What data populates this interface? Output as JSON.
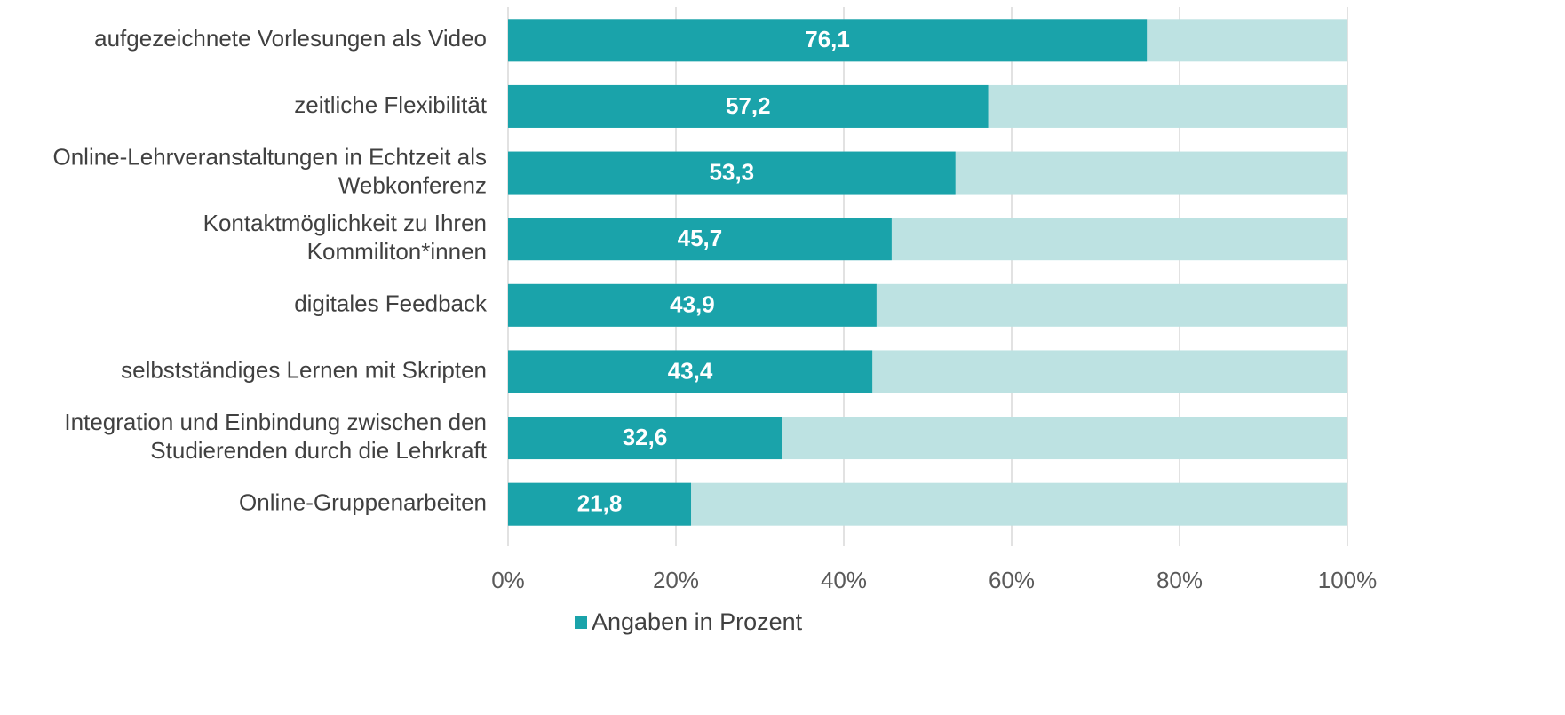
{
  "chart_data": {
    "type": "bar",
    "orientation": "horizontal",
    "categories": [
      "aufgezeichnete Vorlesungen als Video",
      "zeitliche Flexibilität",
      "Online-Lehrveranstaltungen in Echtzeit als\nWebkonferenz",
      "Kontaktmöglichkeit zu Ihren\nKommiliton*innen",
      "digitales Feedback",
      "selbstständiges Lernen mit Skripten",
      "Integration und Einbindung zwischen den\nStudierenden durch die Lehrkraft",
      "Online-Gruppenarbeiten"
    ],
    "series": [
      {
        "name": "Angaben in Prozent",
        "color": "#1aa3aa",
        "values": [
          76.1,
          57.2,
          53.3,
          45.7,
          43.9,
          43.4,
          32.6,
          21.8
        ],
        "value_labels": [
          "76,1",
          "57,2",
          "53,3",
          "45,7",
          "43,9",
          "43,4",
          "32,6",
          "21,8"
        ]
      }
    ],
    "track_color": "#bde2e2",
    "xlim": [
      0,
      100
    ],
    "xticks": [
      {
        "value": 0,
        "label": "0%"
      },
      {
        "value": 20,
        "label": "20%"
      },
      {
        "value": 40,
        "label": "40%"
      },
      {
        "value": 60,
        "label": "60%"
      },
      {
        "value": 80,
        "label": "80%"
      },
      {
        "value": 100,
        "label": "100%"
      }
    ],
    "grid": true,
    "legend": "bottom"
  }
}
